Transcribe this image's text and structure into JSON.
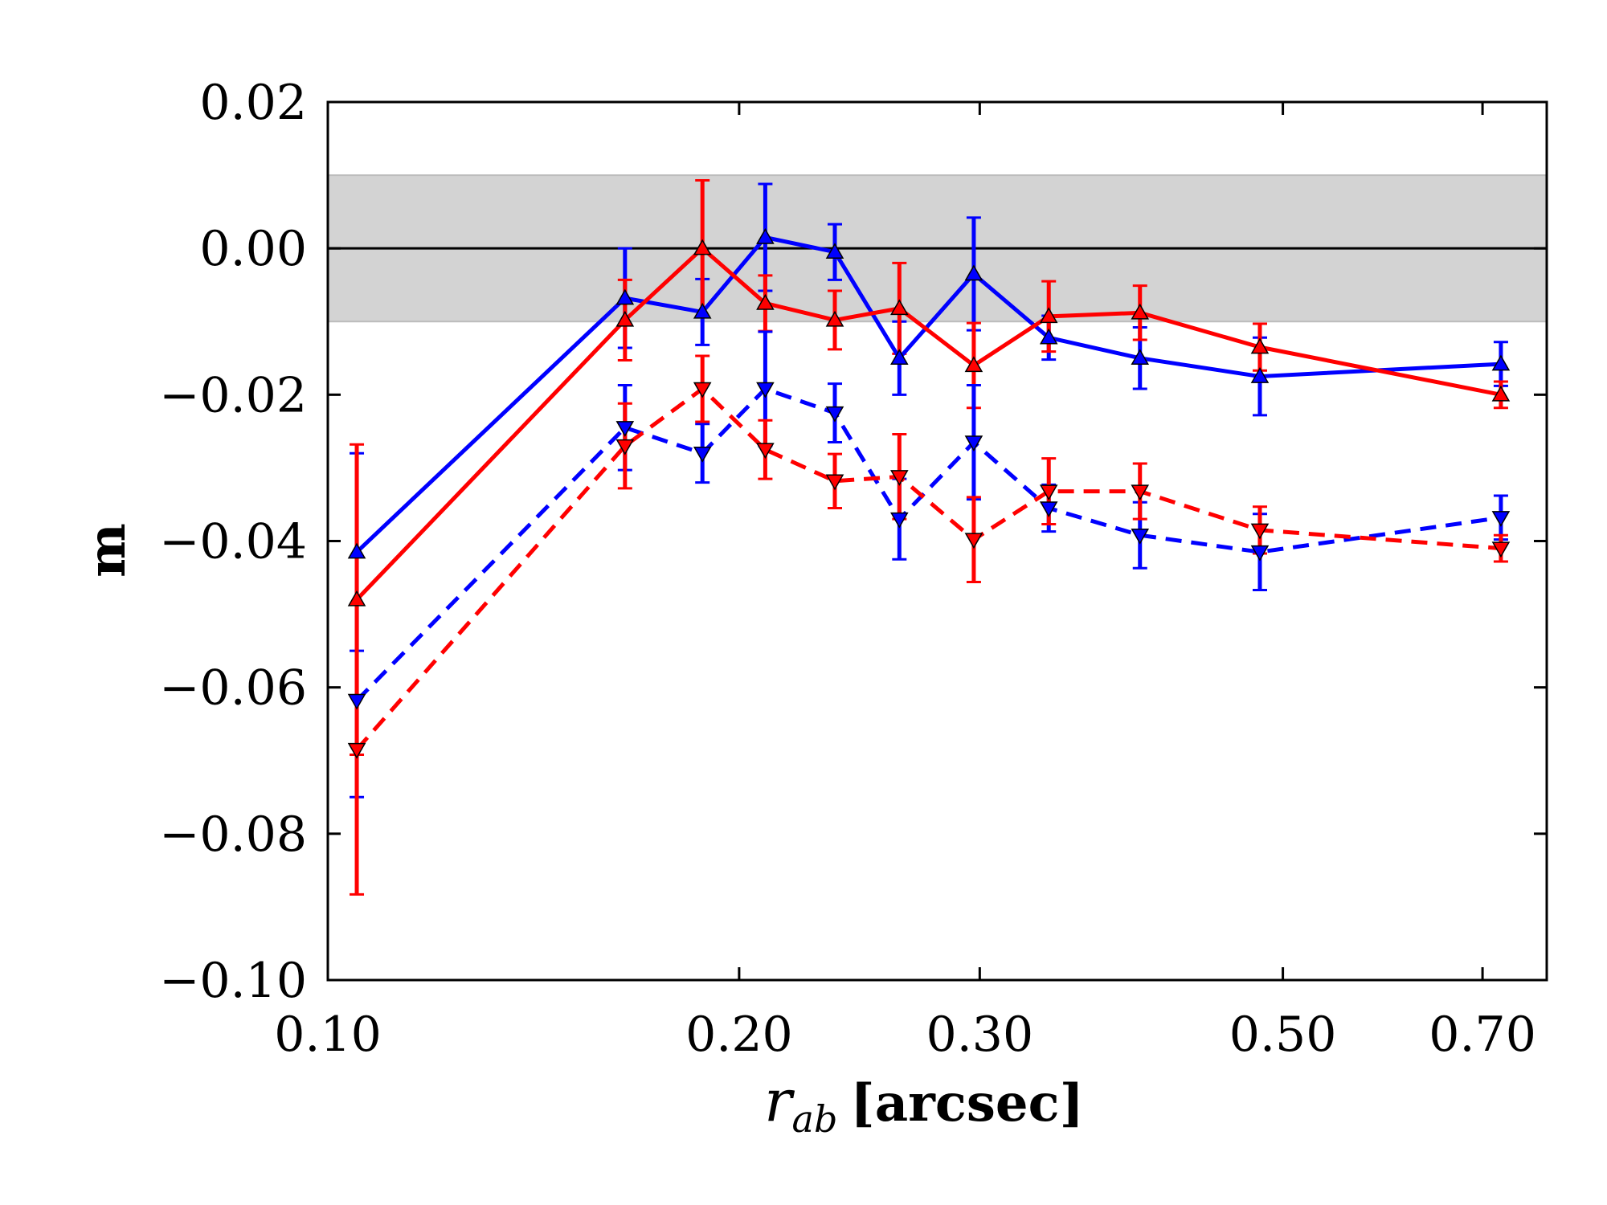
{
  "chart_data": {
    "type": "line",
    "title": "",
    "xlabel": "r_ab [arcsec]",
    "xlabel_var": "r",
    "xlabel_sub": "ab",
    "xlabel_unit": "[arcsec]",
    "ylabel": "m",
    "x_scale": "log",
    "xlim": [
      0.1,
      0.78
    ],
    "ylim": [
      -0.1,
      0.02
    ],
    "x_ticks": [
      0.1,
      0.2,
      0.3,
      0.5,
      0.7
    ],
    "x_tick_labels": [
      "0.10",
      "0.20",
      "0.30",
      "0.50",
      "0.70"
    ],
    "y_ticks": [
      0.02,
      0.0,
      -0.02,
      -0.04,
      -0.06,
      -0.08,
      -0.1
    ],
    "y_tick_labels": [
      "0.02",
      "0.00",
      "−0.02",
      "−0.04",
      "−0.06",
      "−0.08",
      "−0.10"
    ],
    "reference_line": {
      "y": 0.0,
      "color": "#000000"
    },
    "shaded_band": {
      "y": [
        -0.01,
        0.01
      ],
      "color": "#d3d3d3"
    },
    "series": [
      {
        "name": "blue-solid-up",
        "color": "#0000ff",
        "linestyle": "solid",
        "marker": "triangle-up",
        "x": [
          0.105,
          0.165,
          0.188,
          0.209,
          0.235,
          0.262,
          0.297,
          0.337,
          0.393,
          0.481,
          0.722
        ],
        "y": [
          -0.0415,
          -0.0068,
          -0.0087,
          0.0015,
          -0.0005,
          -0.015,
          -0.0035,
          -0.0122,
          -0.015,
          -0.0175,
          -0.0158
        ],
        "yerr": [
          0.0135,
          0.0068,
          0.0045,
          0.0073,
          0.0038,
          0.005,
          0.0077,
          0.003,
          0.0042,
          0.0053,
          0.003
        ]
      },
      {
        "name": "red-solid-up",
        "color": "#ff0000",
        "linestyle": "solid",
        "marker": "triangle-up",
        "x": [
          0.105,
          0.165,
          0.188,
          0.209,
          0.235,
          0.262,
          0.297,
          0.337,
          0.393,
          0.481,
          0.722
        ],
        "y": [
          -0.048,
          -0.0098,
          0.0,
          -0.0075,
          -0.0098,
          -0.0082,
          -0.016,
          -0.0093,
          -0.0088,
          -0.0135,
          -0.02
        ],
        "yerr": [
          0.0212,
          0.0055,
          0.0093,
          0.0038,
          0.004,
          0.0062,
          0.0058,
          0.0048,
          0.0037,
          0.0032,
          0.0018
        ]
      },
      {
        "name": "blue-dashed-down",
        "color": "#0000ff",
        "linestyle": "dashed",
        "marker": "triangle-down",
        "x": [
          0.105,
          0.165,
          0.188,
          0.209,
          0.235,
          0.262,
          0.297,
          0.337,
          0.393,
          0.481,
          0.722
        ],
        "y": [
          -0.0618,
          -0.0245,
          -0.028,
          -0.0192,
          -0.0225,
          -0.037,
          -0.0265,
          -0.0355,
          -0.0392,
          -0.0415,
          -0.0368
        ],
        "yerr": [
          0.0132,
          0.0058,
          0.004,
          0.0078,
          0.004,
          0.0055,
          0.0078,
          0.0032,
          0.0045,
          0.0052,
          0.003
        ]
      },
      {
        "name": "red-dashed-down",
        "color": "#ff0000",
        "linestyle": "dashed",
        "marker": "triangle-down",
        "x": [
          0.105,
          0.165,
          0.188,
          0.209,
          0.235,
          0.262,
          0.297,
          0.337,
          0.393,
          0.481,
          0.722
        ],
        "y": [
          -0.0685,
          -0.027,
          -0.0192,
          -0.0275,
          -0.0318,
          -0.0312,
          -0.0398,
          -0.0332,
          -0.0332,
          -0.0385,
          -0.041
        ],
        "yerr": [
          0.0198,
          0.0058,
          0.0045,
          0.004,
          0.0037,
          0.0058,
          0.0058,
          0.0045,
          0.0038,
          0.0032,
          0.0018
        ]
      }
    ]
  }
}
